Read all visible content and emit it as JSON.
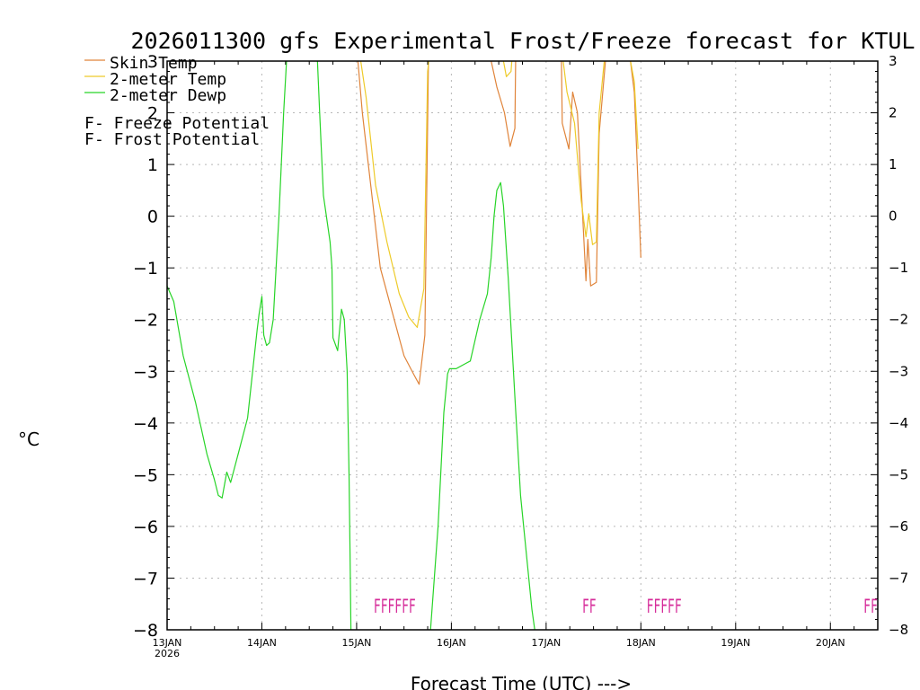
{
  "chart_data": {
    "type": "line",
    "title": "2026011300 gfs Experimental Frost/Freeze forecast for KTUL",
    "xlabel": "Forecast Time (UTC) --->",
    "ylabel": "°C",
    "ylim": [
      -8,
      3
    ],
    "xlim": [
      0,
      7.5
    ],
    "yticks": [
      -8,
      -7,
      -6,
      -5,
      -4,
      -3,
      -2,
      -1,
      0,
      1,
      2,
      3
    ],
    "ytick_labels": [
      "−8",
      "−7",
      "−6",
      "−5",
      "−4",
      "−3",
      "−2",
      "−1",
      "0",
      "1",
      "2",
      "3"
    ],
    "xticks": [
      {
        "label": "13JAN",
        "day": 0
      },
      {
        "label": "14JAN",
        "day": 1
      },
      {
        "label": "15JAN",
        "day": 2
      },
      {
        "label": "16JAN",
        "day": 3
      },
      {
        "label": "17JAN",
        "day": 4
      },
      {
        "label": "18JAN",
        "day": 5
      },
      {
        "label": "19JAN",
        "day": 6
      },
      {
        "label": "20JAN",
        "day": 7
      }
    ],
    "year_label": "2026",
    "grid": true,
    "legend": [
      {
        "label": "Skin Temp",
        "color": "#e0843a"
      },
      {
        "label": "2-meter Temp",
        "color": "#eecb2a"
      },
      {
        "label": "2-meter Dewp",
        "color": "#27d427"
      }
    ],
    "potential_legend": [
      {
        "symbol": "F",
        "text": " - Freeze Potential",
        "color": "#d62d9a"
      },
      {
        "symbol": "F",
        "text": " - Frost Potential",
        "color": "#6a5ee0"
      }
    ],
    "series": [
      {
        "name": "Skin Temp",
        "color": "#e0843a",
        "segments": [
          [
            [
              2.0,
              3.3
            ],
            [
              2.06,
              2.0
            ],
            [
              2.25,
              -1.0
            ],
            [
              2.5,
              -2.7
            ],
            [
              2.6,
              -3.05
            ],
            [
              2.66,
              -3.25
            ],
            [
              2.72,
              -2.3
            ],
            [
              2.76,
              3.3
            ]
          ],
          [
            [
              3.4,
              3.3
            ],
            [
              3.42,
              3.0
            ],
            [
              3.48,
              2.5
            ],
            [
              3.56,
              2.0
            ],
            [
              3.62,
              1.35
            ],
            [
              3.67,
              1.7
            ],
            [
              3.68,
              3.3
            ]
          ],
          [
            [
              4.16,
              3.3
            ],
            [
              4.17,
              1.8
            ],
            [
              4.24,
              1.3
            ],
            [
              4.28,
              2.4
            ],
            [
              4.33,
              2.0
            ],
            [
              4.42,
              -1.25
            ],
            [
              4.44,
              -0.45
            ],
            [
              4.47,
              -1.35
            ],
            [
              4.53,
              -1.28
            ],
            [
              4.56,
              1.6
            ],
            [
              4.64,
              3.3
            ]
          ],
          [
            [
              4.64,
              3.3
            ],
            [
              4.87,
              3.3
            ],
            [
              4.93,
              2.4
            ],
            [
              4.97,
              0.6
            ],
            [
              5.0,
              -0.8
            ]
          ]
        ]
      },
      {
        "name": "2-meter Temp",
        "color": "#eecb2a",
        "segments": [
          [
            [
              2.02,
              3.3
            ],
            [
              2.1,
              2.3
            ],
            [
              2.2,
              0.6
            ],
            [
              2.32,
              -0.5
            ],
            [
              2.45,
              -1.5
            ],
            [
              2.55,
              -1.95
            ],
            [
              2.64,
              -2.15
            ],
            [
              2.71,
              -1.4
            ],
            [
              2.75,
              2.8
            ],
            [
              2.78,
              3.3
            ]
          ],
          [
            [
              3.52,
              3.3
            ],
            [
              3.58,
              2.7
            ],
            [
              3.63,
              2.8
            ],
            [
              3.65,
              3.3
            ]
          ],
          [
            [
              4.16,
              3.3
            ],
            [
              4.22,
              2.4
            ],
            [
              4.3,
              1.8
            ],
            [
              4.37,
              0.3
            ],
            [
              4.42,
              -0.4
            ],
            [
              4.45,
              0.05
            ],
            [
              4.49,
              -0.55
            ],
            [
              4.53,
              -0.5
            ],
            [
              4.56,
              2.0
            ],
            [
              4.63,
              3.3
            ]
          ],
          [
            [
              4.66,
              3.3
            ],
            [
              4.86,
              3.3
            ],
            [
              4.93,
              2.6
            ],
            [
              4.97,
              1.3
            ]
          ]
        ]
      },
      {
        "name": "2-meter Dewp",
        "color": "#27d427",
        "segments": [
          [
            [
              0.0,
              -1.35
            ],
            [
              0.07,
              -1.65
            ],
            [
              0.17,
              -2.7
            ],
            [
              0.3,
              -3.6
            ],
            [
              0.42,
              -4.6
            ],
            [
              0.5,
              -5.1
            ],
            [
              0.54,
              -5.4
            ],
            [
              0.58,
              -5.45
            ],
            [
              0.63,
              -4.95
            ],
            [
              0.67,
              -5.15
            ],
            [
              0.75,
              -4.6
            ],
            [
              0.85,
              -3.9
            ],
            [
              0.95,
              -2.2
            ],
            [
              0.97,
              -1.9
            ],
            [
              1.0,
              -1.55
            ],
            [
              1.02,
              -2.3
            ],
            [
              1.05,
              -2.5
            ],
            [
              1.08,
              -2.45
            ],
            [
              1.12,
              -2.0
            ],
            [
              1.18,
              0.0
            ],
            [
              1.23,
              2.0
            ],
            [
              1.27,
              3.3
            ]
          ],
          [
            [
              1.58,
              3.3
            ],
            [
              1.61,
              2.0
            ],
            [
              1.65,
              0.4
            ],
            [
              1.72,
              -0.5
            ],
            [
              1.74,
              -1.0
            ],
            [
              1.75,
              -2.35
            ],
            [
              1.8,
              -2.6
            ],
            [
              1.84,
              -1.8
            ],
            [
              1.87,
              -2.0
            ],
            [
              1.9,
              -3.0
            ],
            [
              1.92,
              -5.0
            ],
            [
              1.93,
              -6.5
            ],
            [
              1.94,
              -8.0
            ]
          ],
          [
            [
              2.78,
              -8.0
            ],
            [
              2.86,
              -6.0
            ],
            [
              2.92,
              -3.8
            ],
            [
              2.96,
              -3.05
            ],
            [
              2.98,
              -2.95
            ],
            [
              3.05,
              -2.95
            ],
            [
              3.15,
              -2.85
            ],
            [
              3.2,
              -2.8
            ],
            [
              3.3,
              -2.0
            ],
            [
              3.38,
              -1.5
            ],
            [
              3.42,
              -0.8
            ],
            [
              3.45,
              0.0
            ],
            [
              3.48,
              0.5
            ],
            [
              3.52,
              0.65
            ],
            [
              3.55,
              0.2
            ],
            [
              3.6,
              -1.2
            ],
            [
              3.67,
              -3.5
            ],
            [
              3.73,
              -5.4
            ],
            [
              3.85,
              -7.6
            ],
            [
              3.88,
              -8.0
            ]
          ]
        ]
      }
    ],
    "freeze_marks": [
      {
        "text": "FFFFFF",
        "day": 2.18
      },
      {
        "text": "FF",
        "day": 4.38
      },
      {
        "text": "FFFFF",
        "day": 5.06
      },
      {
        "text": "FF",
        "day": 7.35
      }
    ]
  }
}
